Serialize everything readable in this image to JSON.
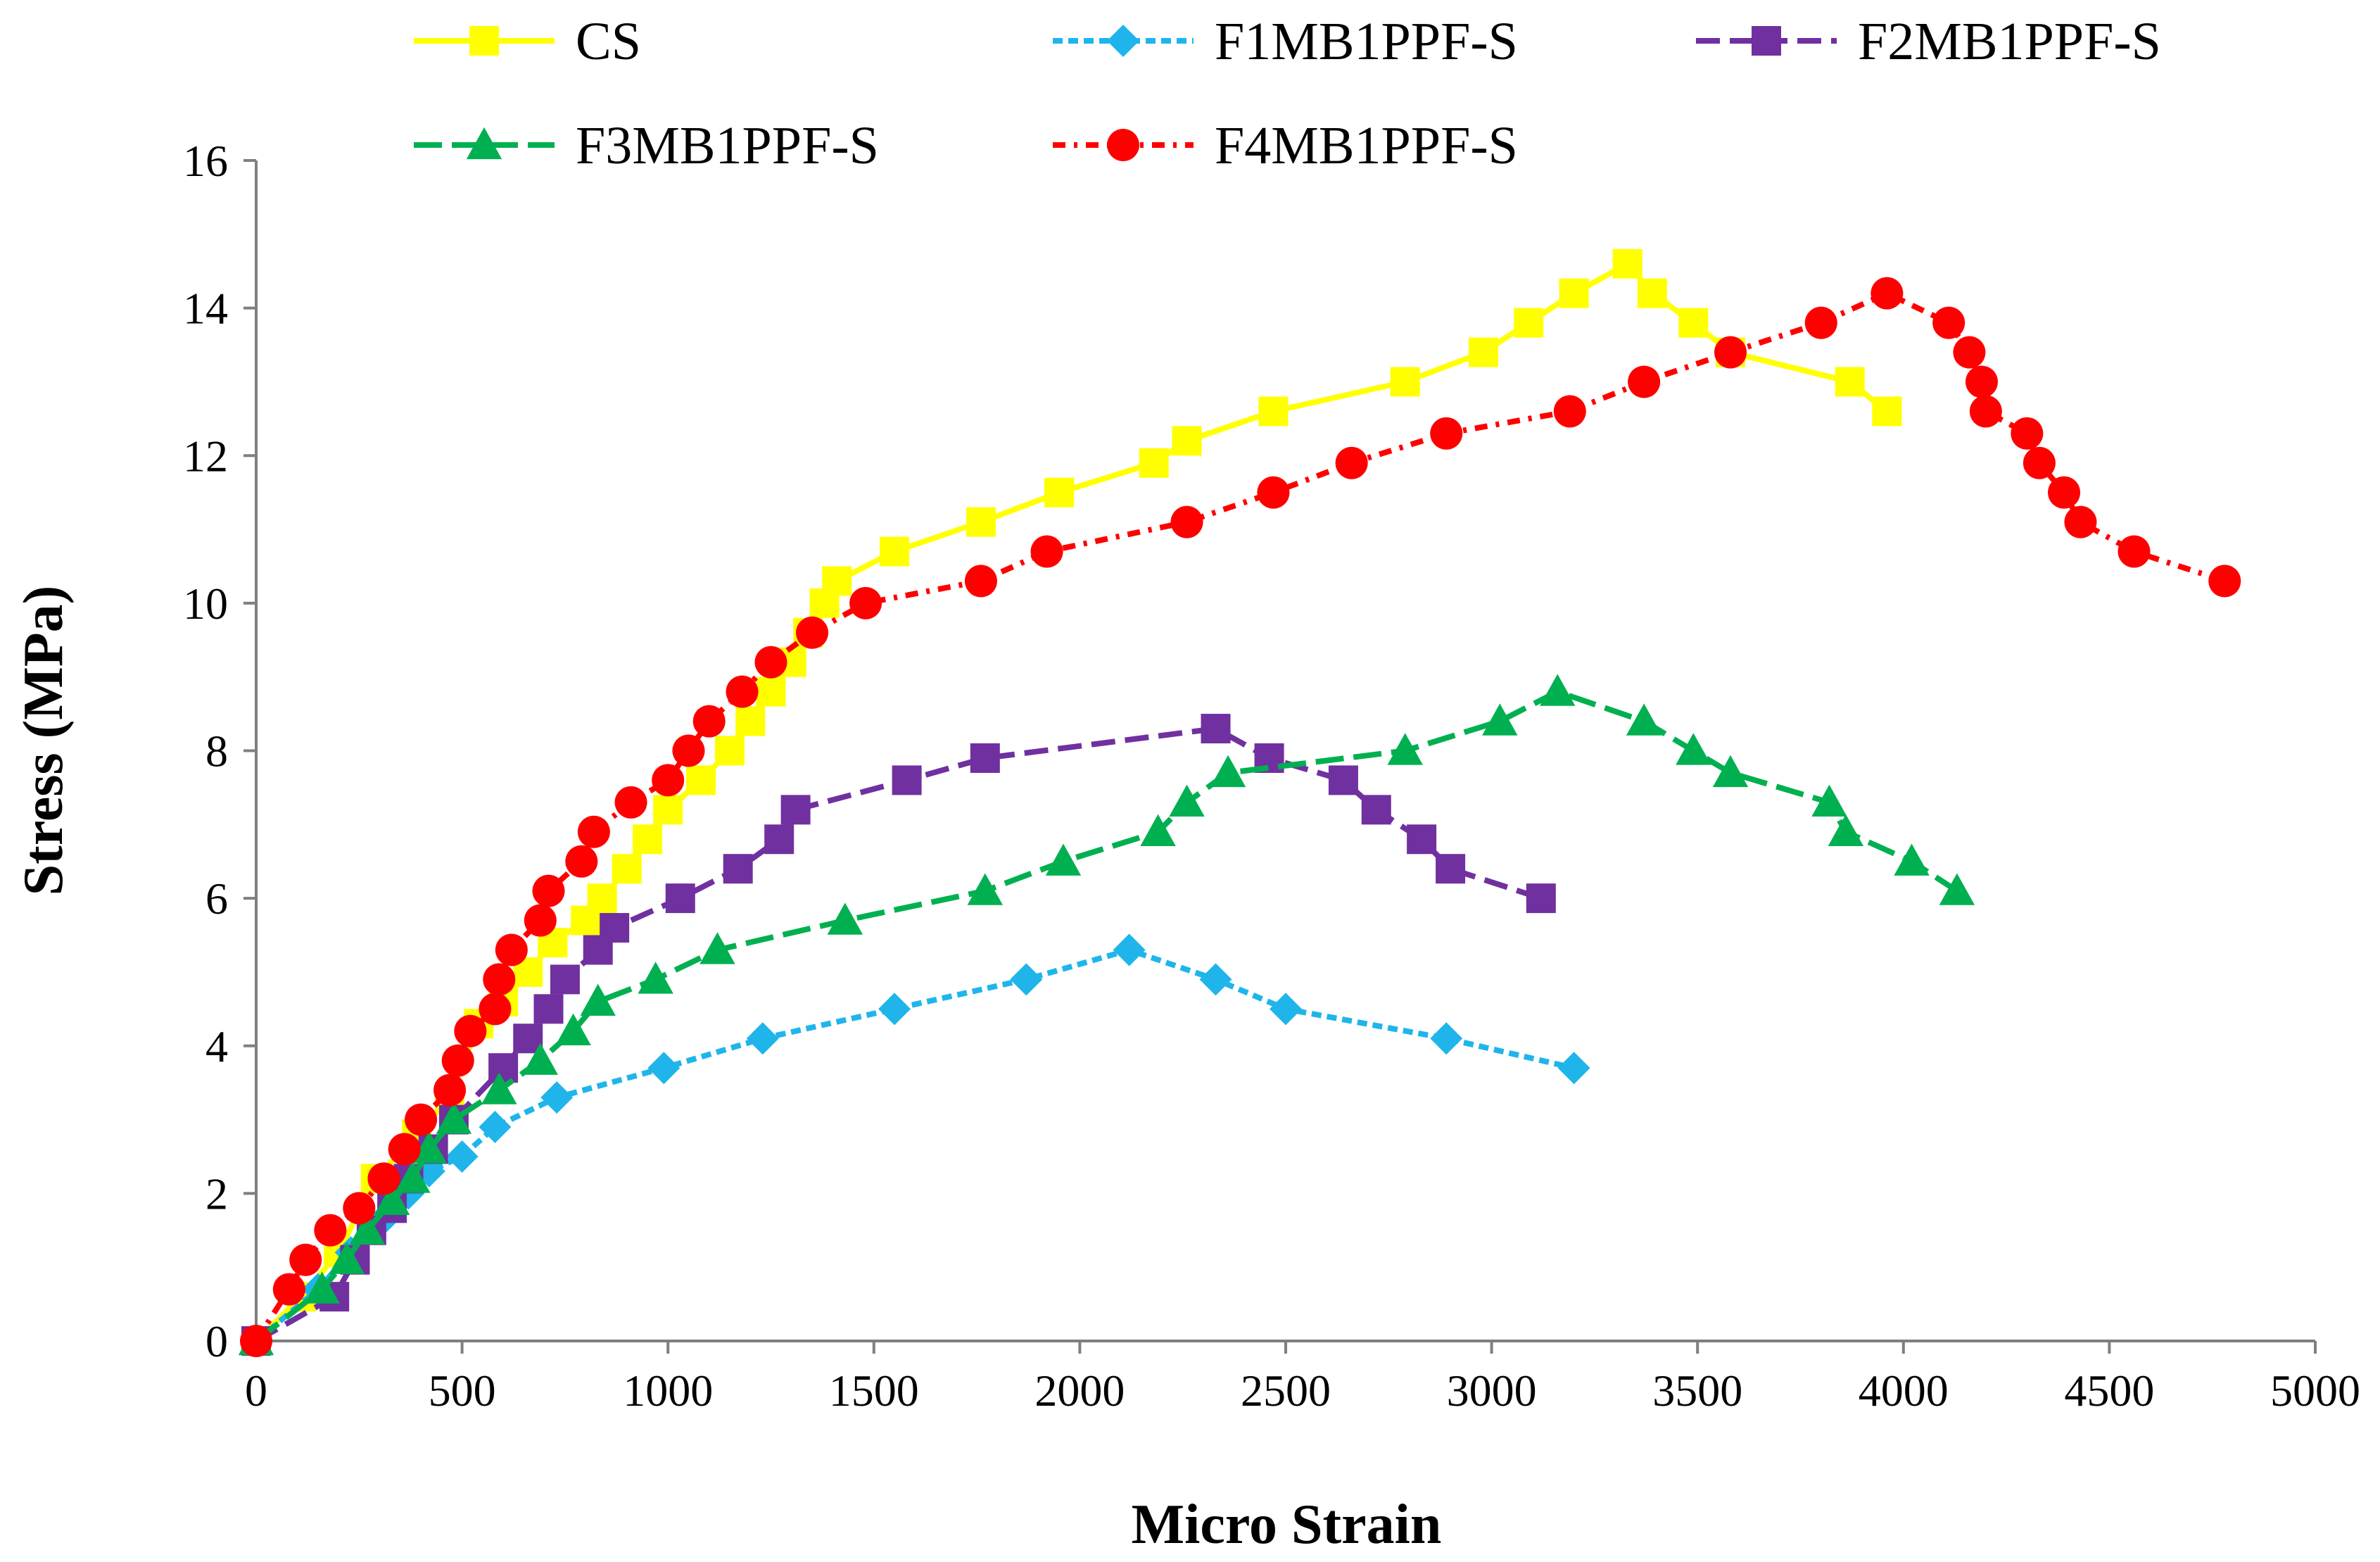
{
  "chart_data": {
    "type": "line",
    "title": "",
    "xlabel": "Micro Strain",
    "ylabel": "Stress (MPa)",
    "xlim": [
      0,
      5000
    ],
    "ylim": [
      0,
      16
    ],
    "xticks": [
      0,
      500,
      1000,
      1500,
      2000,
      2500,
      3000,
      3500,
      4000,
      4500,
      5000
    ],
    "yticks": [
      0,
      2,
      4,
      6,
      8,
      10,
      12,
      14,
      16
    ],
    "grid": false,
    "legend_position": "top",
    "series": [
      {
        "name": "CS",
        "color": "#FFFF00",
        "marker": "square",
        "dash": "solid",
        "points": [
          [
            0,
            0
          ],
          [
            110,
            0.6
          ],
          [
            200,
            1.2
          ],
          [
            290,
            2.2
          ],
          [
            390,
            2.8
          ],
          [
            470,
            3.3
          ],
          [
            540,
            4.3
          ],
          [
            600,
            4.6
          ],
          [
            660,
            5.0
          ],
          [
            720,
            5.4
          ],
          [
            800,
            5.7
          ],
          [
            840,
            6.0
          ],
          [
            900,
            6.4
          ],
          [
            950,
            6.8
          ],
          [
            1000,
            7.2
          ],
          [
            1080,
            7.6
          ],
          [
            1150,
            8.0
          ],
          [
            1200,
            8.4
          ],
          [
            1250,
            8.8
          ],
          [
            1300,
            9.2
          ],
          [
            1340,
            9.6
          ],
          [
            1380,
            10.0
          ],
          [
            1410,
            10.3
          ],
          [
            1550,
            10.7
          ],
          [
            1760,
            11.1
          ],
          [
            1950,
            11.5
          ],
          [
            2180,
            11.9
          ],
          [
            2260,
            12.2
          ],
          [
            2470,
            12.6
          ],
          [
            2790,
            13.0
          ],
          [
            2980,
            13.4
          ],
          [
            3090,
            13.8
          ],
          [
            3200,
            14.2
          ],
          [
            3330,
            14.6
          ],
          [
            3390,
            14.2
          ],
          [
            3490,
            13.8
          ],
          [
            3580,
            13.4
          ],
          [
            3870,
            13.0
          ],
          [
            3960,
            12.6
          ]
        ]
      },
      {
        "name": "F1MB1PPF-S",
        "color": "#1FB5EB",
        "marker": "diamond",
        "dash": "14 8",
        "points": [
          [
            0,
            0
          ],
          [
            150,
            0.7
          ],
          [
            230,
            1.2
          ],
          [
            300,
            1.6
          ],
          [
            370,
            2.0
          ],
          [
            420,
            2.3
          ],
          [
            500,
            2.5
          ],
          [
            580,
            2.9
          ],
          [
            730,
            3.3
          ],
          [
            990,
            3.7
          ],
          [
            1230,
            4.1
          ],
          [
            1550,
            4.5
          ],
          [
            1870,
            4.9
          ],
          [
            2120,
            5.3
          ],
          [
            2330,
            4.9
          ],
          [
            2500,
            4.5
          ],
          [
            2890,
            4.1
          ],
          [
            3200,
            3.7
          ]
        ]
      },
      {
        "name": "F2MB1PPF-S",
        "color": "#7030A0",
        "marker": "square",
        "dash": "34 14",
        "points": [
          [
            0,
            0
          ],
          [
            190,
            0.6
          ],
          [
            240,
            1.1
          ],
          [
            280,
            1.5
          ],
          [
            330,
            1.8
          ],
          [
            370,
            2.2
          ],
          [
            430,
            2.6
          ],
          [
            480,
            3.0
          ],
          [
            600,
            3.7
          ],
          [
            660,
            4.1
          ],
          [
            710,
            4.5
          ],
          [
            750,
            4.9
          ],
          [
            830,
            5.3
          ],
          [
            870,
            5.6
          ],
          [
            1030,
            6.0
          ],
          [
            1170,
            6.4
          ],
          [
            1270,
            6.8
          ],
          [
            1310,
            7.2
          ],
          [
            1580,
            7.6
          ],
          [
            1770,
            7.9
          ],
          [
            2330,
            8.3
          ],
          [
            2460,
            7.9
          ],
          [
            2640,
            7.6
          ],
          [
            2720,
            7.2
          ],
          [
            2830,
            6.8
          ],
          [
            2900,
            6.4
          ],
          [
            3120,
            6.0
          ]
        ]
      },
      {
        "name": "F3MB1PPF-S",
        "color": "#00B050",
        "marker": "triangle",
        "dash": "40 14",
        "points": [
          [
            0,
            0
          ],
          [
            160,
            0.7
          ],
          [
            220,
            1.1
          ],
          [
            270,
            1.5
          ],
          [
            330,
            1.9
          ],
          [
            380,
            2.2
          ],
          [
            420,
            2.6
          ],
          [
            480,
            3.0
          ],
          [
            590,
            3.4
          ],
          [
            690,
            3.8
          ],
          [
            770,
            4.2
          ],
          [
            830,
            4.6
          ],
          [
            970,
            4.9
          ],
          [
            1120,
            5.3
          ],
          [
            1430,
            5.7
          ],
          [
            1770,
            6.1
          ],
          [
            1960,
            6.5
          ],
          [
            2190,
            6.9
          ],
          [
            2260,
            7.3
          ],
          [
            2360,
            7.7
          ],
          [
            2790,
            8.0
          ],
          [
            3020,
            8.4
          ],
          [
            3160,
            8.8
          ],
          [
            3370,
            8.4
          ],
          [
            3490,
            8.0
          ],
          [
            3580,
            7.7
          ],
          [
            3820,
            7.3
          ],
          [
            3860,
            6.9
          ],
          [
            4020,
            6.5
          ],
          [
            4130,
            6.1
          ]
        ]
      },
      {
        "name": "F4MB1PPF-S",
        "color": "#FF0000",
        "marker": "circle",
        "dash": "18 12 5 12",
        "points": [
          [
            0,
            0
          ],
          [
            80,
            0.7
          ],
          [
            120,
            1.1
          ],
          [
            180,
            1.5
          ],
          [
            250,
            1.8
          ],
          [
            310,
            2.2
          ],
          [
            360,
            2.6
          ],
          [
            400,
            3.0
          ],
          [
            470,
            3.4
          ],
          [
            490,
            3.8
          ],
          [
            520,
            4.2
          ],
          [
            580,
            4.5
          ],
          [
            590,
            4.9
          ],
          [
            620,
            5.3
          ],
          [
            690,
            5.7
          ],
          [
            710,
            6.1
          ],
          [
            790,
            6.5
          ],
          [
            820,
            6.9
          ],
          [
            910,
            7.3
          ],
          [
            1000,
            7.6
          ],
          [
            1050,
            8.0
          ],
          [
            1100,
            8.4
          ],
          [
            1180,
            8.8
          ],
          [
            1250,
            9.2
          ],
          [
            1350,
            9.6
          ],
          [
            1480,
            10.0
          ],
          [
            1760,
            10.3
          ],
          [
            1920,
            10.7
          ],
          [
            2260,
            11.1
          ],
          [
            2470,
            11.5
          ],
          [
            2660,
            11.9
          ],
          [
            2890,
            12.3
          ],
          [
            3190,
            12.6
          ],
          [
            3370,
            13.0
          ],
          [
            3580,
            13.4
          ],
          [
            3800,
            13.8
          ],
          [
            3960,
            14.2
          ],
          [
            4110,
            13.8
          ],
          [
            4160,
            13.4
          ],
          [
            4190,
            13.0
          ],
          [
            4200,
            12.6
          ],
          [
            4300,
            12.3
          ],
          [
            4330,
            11.9
          ],
          [
            4390,
            11.5
          ],
          [
            4430,
            11.1
          ],
          [
            4560,
            10.7
          ],
          [
            4780,
            10.3
          ]
        ]
      }
    ]
  }
}
